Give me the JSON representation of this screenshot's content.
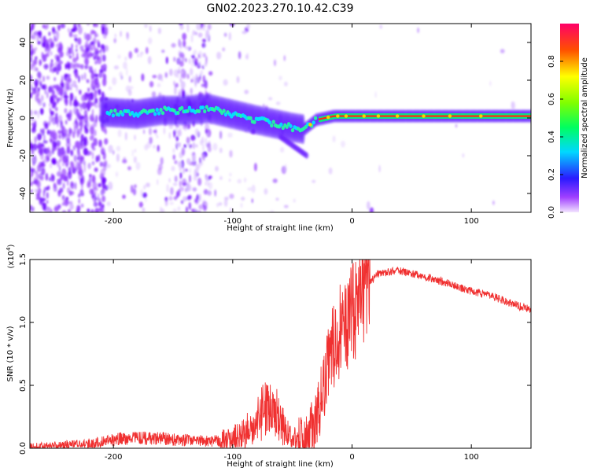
{
  "title": "GN02.2023.270.10.42.C39",
  "chart_data": [
    {
      "type": "heatmap",
      "xlabel": "Height of straight line (km)",
      "ylabel": "Frequency (Hz)",
      "xlim": [
        -270,
        150
      ],
      "ylim": [
        -50,
        50
      ],
      "x_ticks": [
        -200,
        -100,
        0,
        100
      ],
      "y_ticks": [
        -40,
        -20,
        0,
        20,
        40
      ],
      "ridge_line": [
        {
          "x": -205,
          "y": 3
        },
        {
          "x": -180,
          "y": 2
        },
        {
          "x": -160,
          "y": 4
        },
        {
          "x": -140,
          "y": 4
        },
        {
          "x": -120,
          "y": 5
        },
        {
          "x": -100,
          "y": 2
        },
        {
          "x": -80,
          "y": -1
        },
        {
          "x": -65,
          "y": -3
        },
        {
          "x": -50,
          "y": -5
        },
        {
          "x": -40,
          "y": -6
        },
        {
          "x": -30,
          "y": -1
        },
        {
          "x": -15,
          "y": 1
        },
        {
          "x": 0,
          "y": 1
        },
        {
          "x": 50,
          "y": 1
        },
        {
          "x": 100,
          "y": 1
        },
        {
          "x": 150,
          "y": 1
        }
      ],
      "colorbar": {
        "label": "Normalized spectral amplitude",
        "ticks": [
          "0.0",
          "0.2",
          "0.4",
          "0.6",
          "0.8"
        ],
        "range": [
          0,
          1
        ]
      }
    },
    {
      "type": "line",
      "xlabel": "Height of straight line (km)",
      "ylabel": "SNR (10 * v/v)",
      "scale_label": "(x10",
      "scale_exp": "4",
      "scale_close": ")",
      "xlim": [
        -270,
        150
      ],
      "ylim": [
        0,
        1.5
      ],
      "x_ticks": [
        -200,
        -100,
        0,
        100
      ],
      "y_ticks": [
        "0.0",
        "0.5",
        "1.0",
        "1.5"
      ],
      "line_color": "#f03030",
      "series": [
        {
          "name": "SNR",
          "x": [
            -270,
            -250,
            -230,
            -210,
            -190,
            -170,
            -150,
            -130,
            -110,
            -100,
            -90,
            -80,
            -70,
            -60,
            -50,
            -40,
            -30,
            -20,
            -10,
            0,
            10,
            20,
            30,
            40,
            60,
            80,
            100,
            120,
            140,
            150
          ],
          "y": [
            0.01,
            0.02,
            0.03,
            0.05,
            0.08,
            0.08,
            0.07,
            0.06,
            0.06,
            0.08,
            0.12,
            0.22,
            0.35,
            0.22,
            0.08,
            0.05,
            0.2,
            0.72,
            0.95,
            1.05,
            1.25,
            1.38,
            1.4,
            1.41,
            1.37,
            1.31,
            1.25,
            1.2,
            1.13,
            1.1
          ]
        }
      ]
    }
  ]
}
